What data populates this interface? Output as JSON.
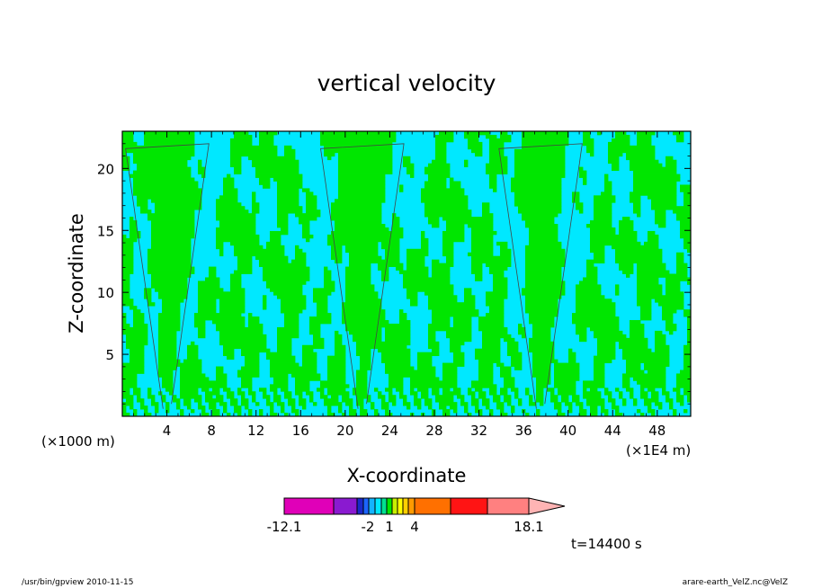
{
  "chart_data": {
    "type": "heatmap",
    "title": "vertical velocity",
    "xlabel": "X-coordinate",
    "ylabel": "Z-coordinate",
    "x_unit_left": "(×1000 m)",
    "x_unit_right": "(×1E4 m)",
    "xlim": [
      0,
      51
    ],
    "ylim": [
      0,
      23
    ],
    "x_ticks": [
      4,
      8,
      12,
      16,
      20,
      24,
      28,
      32,
      36,
      40,
      44,
      48
    ],
    "y_ticks": [
      5,
      10,
      15,
      20
    ],
    "x_tick_labels": [
      "4",
      "8",
      "12",
      "16",
      "20",
      "24",
      "28",
      "32",
      "36",
      "40",
      "44",
      "48"
    ],
    "y_tick_labels": [
      "5",
      "10",
      "15",
      "20"
    ],
    "colors": {
      "negative": "#00e8ff",
      "positive": "#00e600",
      "contour": "#444444"
    },
    "plume_centers_x": [
      4,
      21.5,
      37.5
    ],
    "colorbar": {
      "colors": [
        "#e000b8",
        "#8a1ad0",
        "#1a28c8",
        "#1c64ff",
        "#14b4ff",
        "#00e8ff",
        "#00e090",
        "#00e600",
        "#c8f000",
        "#ffff00",
        "#ffd000",
        "#ff9a00",
        "#ff7000",
        "#ff1414",
        "#ff8080",
        "#ffb4b4"
      ],
      "labels": [
        "-12.1",
        "-2",
        "1",
        "4",
        "18.1"
      ]
    },
    "time_label": "t=14400 s"
  },
  "footer": {
    "left": "/usr/bin/gpview   2010-11-15",
    "right": "arare-earth_VelZ.nc@VelZ"
  }
}
